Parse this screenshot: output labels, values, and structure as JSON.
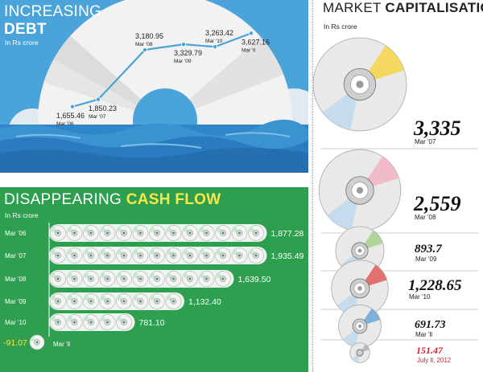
{
  "debt": {
    "title_light": "INCREASING",
    "title_bold": "DEBT",
    "unit": "In Rs crore"
  },
  "cash": {
    "title_light": "DISAPPEARING",
    "title_bold": "CASH FLOW",
    "unit": "In Rs crore"
  },
  "mcap": {
    "title_light": "MARKET",
    "title_bold": "CAPITALISATION",
    "unit": "In Rs crore"
  },
  "colors": {
    "debt_bg": "#4aa3d9",
    "cash_bg": "#2e9e4f",
    "line": "#4aa3d9",
    "latest_highlight": "#d2202f"
  },
  "chart_data": [
    {
      "type": "line",
      "title": "INCREASING DEBT",
      "ylabel": "In Rs crore",
      "categories": [
        "Mar '06",
        "Mar '07",
        "Mar '08",
        "Mar '09",
        "Mar '10",
        "Mar 'll"
      ],
      "labels": [
        "1,655.46",
        "1,850.23",
        "3,180.95",
        "3,329.79",
        "3,263.42",
        "3,627.16"
      ],
      "values": [
        1655.46,
        1850.23,
        3180.95,
        3329.79,
        3263.42,
        3627.16
      ]
    },
    {
      "type": "bar",
      "title": "DISAPPEARING CASH FLOW",
      "ylabel": "In Rs crore",
      "categories": [
        "Mar '06",
        "Mar '07",
        "Mar '08",
        "Mar '09",
        "Mar '10",
        "Mar 'll"
      ],
      "labels": [
        "1,877.28",
        "1,935.49",
        "1,639.50",
        "1,132.40",
        "781.10",
        "-91.07"
      ],
      "values": [
        1877.28,
        1935.49,
        1639.5,
        1132.4,
        781.1,
        -91.07
      ]
    },
    {
      "type": "bar",
      "title": "MARKET CAPITALISATION",
      "ylabel": "In Rs crore",
      "categories": [
        "Mar '07",
        "Mar '08",
        "Mar '09",
        "Mar '10",
        "Mar 'll",
        "July ll, 2012"
      ],
      "labels": [
        "3,335",
        "2,559",
        "893.7",
        "1,228.65",
        "691.73",
        "151.47"
      ],
      "values": [
        3335,
        2559,
        893.7,
        1228.65,
        691.73,
        151.47
      ]
    }
  ]
}
